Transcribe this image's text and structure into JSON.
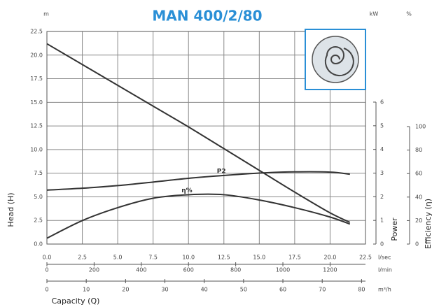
{
  "chart_data": {
    "type": "line",
    "title": "MAN 400/2/80",
    "y_unit": "m",
    "y2_unit": "kW",
    "y3_unit": "%",
    "ylabel": "Head (H)",
    "y2label": "Power",
    "y3label": "Efficiency (η)",
    "xlabel": "Capacity (Q)",
    "x": [
      0,
      2.5,
      5,
      7.5,
      10,
      12.5,
      15,
      17.5,
      20,
      21.4
    ],
    "xlim": [
      0,
      22.5
    ],
    "xticks": [
      {
        "value": 0,
        "label": "0.0"
      },
      2.5,
      {
        "value": 5,
        "label": "5.0"
      },
      7.5,
      {
        "value": 10,
        "label": "10.0"
      },
      12.5,
      {
        "value": 15,
        "label": "15.0"
      },
      17.5,
      {
        "value": 20,
        "label": "20.0"
      },
      22.5
    ],
    "x_unit": "l/sec",
    "x2lim": [
      0,
      1350
    ],
    "x2ticks": [
      0,
      200,
      400,
      600,
      800,
      1000,
      1200
    ],
    "x2_unit": "l/min",
    "x3lim": [
      0,
      81
    ],
    "x3ticks": [
      0,
      10,
      20,
      30,
      40,
      50,
      60,
      70,
      80
    ],
    "x3_unit": "m³/h",
    "ylim": [
      0,
      22.5
    ],
    "yticks": [
      {
        "value": 0,
        "label": "0.0"
      },
      2.5,
      {
        "value": 5,
        "label": "5.0"
      },
      7.5,
      {
        "value": 10,
        "label": "10.0"
      },
      12.5,
      {
        "value": 15,
        "label": "15.0"
      },
      17.5,
      {
        "value": 20,
        "label": "20.0"
      },
      22.5
    ],
    "y2lim": [
      0,
      6
    ],
    "y2ticks": [
      0,
      1,
      2,
      3,
      4,
      5,
      6
    ],
    "y3lim": [
      0,
      100
    ],
    "y3ticks": [
      0,
      20,
      40,
      60,
      80,
      100
    ],
    "grid": true,
    "series": [
      {
        "name": "H",
        "color": "#333333",
        "values": [
          21.2,
          19.0,
          16.8,
          14.6,
          12.4,
          10.1,
          7.8,
          5.5,
          3.3,
          2.3
        ]
      },
      {
        "name": "P2",
        "color": "#333333",
        "axis": "y2",
        "values": [
          2.28,
          2.36,
          2.47,
          2.62,
          2.78,
          2.9,
          3.0,
          3.05,
          3.04,
          2.95
        ]
      },
      {
        "name": "η%",
        "color": "#333333",
        "axis": "y3",
        "values": [
          5,
          20,
          31,
          39,
          42,
          42,
          37.5,
          31,
          23,
          17
        ]
      }
    ]
  }
}
